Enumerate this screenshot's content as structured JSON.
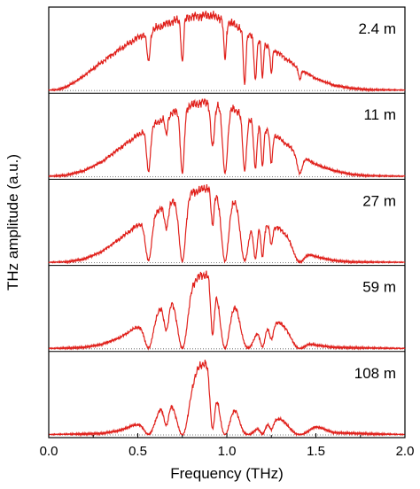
{
  "chart_data": {
    "type": "line",
    "xlabel": "Frequency (THz)",
    "ylabel": "THz amplitude (a.u.)",
    "xlim": [
      0.0,
      2.0
    ],
    "x_ticks": [
      "0.0",
      "0.5",
      "1.0",
      "1.5",
      "2.0"
    ],
    "line_color": "#e0201b",
    "baseline_style": "dotted",
    "panels": [
      {
        "label": "2.4 m",
        "envelope": [
          [
            0.0,
            0.0
          ],
          [
            0.05,
            0.01
          ],
          [
            0.1,
            0.05
          ],
          [
            0.15,
            0.12
          ],
          [
            0.2,
            0.2
          ],
          [
            0.3,
            0.38
          ],
          [
            0.4,
            0.55
          ],
          [
            0.5,
            0.7
          ],
          [
            0.6,
            0.82
          ],
          [
            0.7,
            0.92
          ],
          [
            0.8,
            0.98
          ],
          [
            0.9,
            1.0
          ],
          [
            0.95,
            0.97
          ],
          [
            1.0,
            0.92
          ],
          [
            1.05,
            0.86
          ],
          [
            1.1,
            0.78
          ],
          [
            1.2,
            0.64
          ],
          [
            1.3,
            0.48
          ],
          [
            1.4,
            0.3
          ],
          [
            1.5,
            0.16
          ],
          [
            1.6,
            0.07
          ],
          [
            1.7,
            0.03
          ],
          [
            1.8,
            0.01
          ],
          [
            2.0,
            0.0
          ]
        ],
        "absorptions": [
          [
            0.56,
            0.5,
            0.012
          ],
          [
            0.75,
            0.6,
            0.01
          ],
          [
            0.99,
            0.55,
            0.01
          ],
          [
            1.1,
            0.9,
            0.01
          ],
          [
            1.16,
            0.8,
            0.01
          ],
          [
            1.2,
            0.75,
            0.008
          ],
          [
            1.25,
            0.6,
            0.008
          ],
          [
            1.41,
            0.5,
            0.01
          ]
        ]
      },
      {
        "label": "11 m",
        "envelope": [
          [
            0.0,
            0.0
          ],
          [
            0.1,
            0.02
          ],
          [
            0.2,
            0.08
          ],
          [
            0.3,
            0.2
          ],
          [
            0.4,
            0.38
          ],
          [
            0.5,
            0.55
          ],
          [
            0.6,
            0.7
          ],
          [
            0.7,
            0.85
          ],
          [
            0.8,
            0.95
          ],
          [
            0.9,
            1.0
          ],
          [
            1.0,
            0.95
          ],
          [
            1.05,
            0.88
          ],
          [
            1.1,
            0.8
          ],
          [
            1.2,
            0.66
          ],
          [
            1.3,
            0.5
          ],
          [
            1.4,
            0.3
          ],
          [
            1.5,
            0.16
          ],
          [
            1.6,
            0.08
          ],
          [
            1.7,
            0.03
          ],
          [
            1.8,
            0.01
          ],
          [
            2.0,
            0.0
          ]
        ],
        "absorptions": [
          [
            0.56,
            0.9,
            0.015
          ],
          [
            0.66,
            0.3,
            0.01
          ],
          [
            0.75,
            0.95,
            0.015
          ],
          [
            0.92,
            0.6,
            0.015
          ],
          [
            0.99,
            0.95,
            0.02
          ],
          [
            1.1,
            0.9,
            0.015
          ],
          [
            1.16,
            0.85,
            0.012
          ],
          [
            1.2,
            0.8,
            0.01
          ],
          [
            1.25,
            0.7,
            0.01
          ],
          [
            1.41,
            0.85,
            0.02
          ]
        ]
      },
      {
        "label": "27 m",
        "envelope": [
          [
            0.0,
            0.0
          ],
          [
            0.1,
            0.01
          ],
          [
            0.2,
            0.05
          ],
          [
            0.3,
            0.15
          ],
          [
            0.4,
            0.32
          ],
          [
            0.5,
            0.5
          ],
          [
            0.6,
            0.68
          ],
          [
            0.7,
            0.82
          ],
          [
            0.8,
            0.93
          ],
          [
            0.9,
            1.0
          ],
          [
            1.0,
            0.95
          ],
          [
            1.05,
            0.85
          ],
          [
            1.1,
            0.6
          ],
          [
            1.2,
            0.5
          ],
          [
            1.3,
            0.45
          ],
          [
            1.4,
            0.2
          ],
          [
            1.5,
            0.08
          ],
          [
            1.6,
            0.03
          ],
          [
            1.7,
            0.01
          ],
          [
            2.0,
            0.0
          ]
        ],
        "absorptions": [
          [
            0.56,
            0.95,
            0.025
          ],
          [
            0.66,
            0.4,
            0.015
          ],
          [
            0.75,
            0.98,
            0.025
          ],
          [
            0.92,
            0.5,
            0.012
          ],
          [
            0.99,
            0.98,
            0.03
          ],
          [
            1.1,
            0.95,
            0.03
          ],
          [
            1.16,
            0.9,
            0.015
          ],
          [
            1.2,
            0.85,
            0.012
          ],
          [
            1.25,
            0.5,
            0.01
          ],
          [
            1.41,
            0.95,
            0.04
          ]
        ]
      },
      {
        "label": "59 m",
        "envelope": [
          [
            0.0,
            0.0
          ],
          [
            0.2,
            0.02
          ],
          [
            0.3,
            0.06
          ],
          [
            0.4,
            0.15
          ],
          [
            0.5,
            0.3
          ],
          [
            0.6,
            0.5
          ],
          [
            0.7,
            0.72
          ],
          [
            0.8,
            0.92
          ],
          [
            0.9,
            1.0
          ],
          [
            0.95,
            0.95
          ],
          [
            1.0,
            0.85
          ],
          [
            1.05,
            0.7
          ],
          [
            1.1,
            0.4
          ],
          [
            1.2,
            0.3
          ],
          [
            1.3,
            0.35
          ],
          [
            1.4,
            0.15
          ],
          [
            1.5,
            0.05
          ],
          [
            1.6,
            0.02
          ],
          [
            2.0,
            0.0
          ]
        ],
        "absorptions": [
          [
            0.56,
            0.97,
            0.035
          ],
          [
            0.66,
            0.6,
            0.02
          ],
          [
            0.75,
            0.99,
            0.04
          ],
          [
            0.92,
            0.8,
            0.015
          ],
          [
            0.99,
            0.99,
            0.04
          ],
          [
            1.12,
            0.97,
            0.05
          ],
          [
            1.2,
            0.9,
            0.02
          ],
          [
            1.25,
            0.6,
            0.015
          ],
          [
            1.41,
            0.98,
            0.05
          ]
        ]
      },
      {
        "label": "108 m",
        "envelope": [
          [
            0.0,
            0.0
          ],
          [
            0.3,
            0.02
          ],
          [
            0.4,
            0.06
          ],
          [
            0.5,
            0.15
          ],
          [
            0.6,
            0.3
          ],
          [
            0.7,
            0.55
          ],
          [
            0.8,
            0.85
          ],
          [
            0.9,
            1.0
          ],
          [
            0.95,
            0.95
          ],
          [
            1.0,
            0.8
          ],
          [
            1.05,
            0.55
          ],
          [
            1.1,
            0.2
          ],
          [
            1.2,
            0.15
          ],
          [
            1.3,
            0.22
          ],
          [
            1.4,
            0.1
          ],
          [
            1.5,
            0.12
          ],
          [
            1.6,
            0.03
          ],
          [
            2.0,
            0.0
          ]
        ],
        "absorptions": [
          [
            0.56,
            0.98,
            0.04
          ],
          [
            0.66,
            0.7,
            0.02
          ],
          [
            0.75,
            1.0,
            0.05
          ],
          [
            0.92,
            0.9,
            0.02
          ],
          [
            0.99,
            1.0,
            0.05
          ],
          [
            1.12,
            0.98,
            0.06
          ],
          [
            1.2,
            0.9,
            0.02
          ],
          [
            1.25,
            0.6,
            0.015
          ],
          [
            1.41,
            0.99,
            0.06
          ]
        ]
      }
    ]
  }
}
